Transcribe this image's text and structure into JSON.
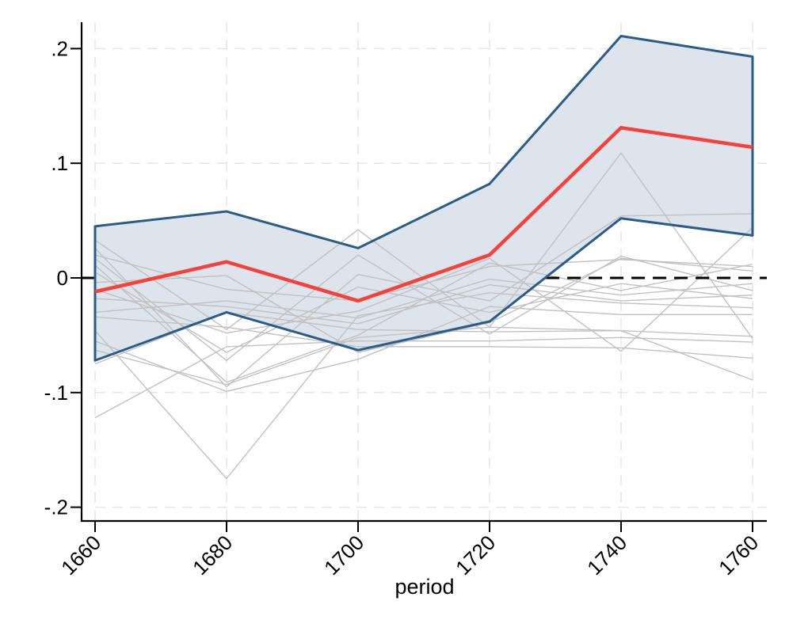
{
  "figure": {
    "background": "#ffffff",
    "x_axis_title": "period"
  },
  "chart_data": {
    "type": "line",
    "title": "",
    "xlabel": "period",
    "ylabel": "",
    "x": [
      1660,
      1680,
      1700,
      1720,
      1740,
      1760
    ],
    "x_tick_labels": [
      "1660",
      "1680",
      "1700",
      "1720",
      "1740",
      "1760"
    ],
    "x_tick_angle_deg": -45,
    "y_ticks": [
      {
        "value": 0.2,
        "label": ".2"
      },
      {
        "value": 0.1,
        "label": ".1"
      },
      {
        "value": 0,
        "label": "0"
      },
      {
        "value": -0.1,
        "label": "-.1"
      },
      {
        "value": -0.2,
        "label": "-.2"
      }
    ],
    "ylim": [
      -0.212,
      0.223
    ],
    "grid": "dashed-both-axes",
    "legend": "none",
    "series": [
      {
        "name": "point estimate",
        "role": "estimate",
        "color": "#f5403c",
        "width": 4.5,
        "values": [
          -0.012,
          0.014,
          -0.02,
          0.02,
          0.131,
          0.114
        ]
      },
      {
        "name": "confidence band upper",
        "role": "band-upper",
        "color": "#2b5c88",
        "width": 3,
        "values": [
          0.045,
          0.058,
          0.026,
          0.082,
          0.211,
          0.193
        ]
      },
      {
        "name": "confidence band lower",
        "role": "band-lower",
        "color": "#2b5c88",
        "width": 3,
        "values": [
          -0.072,
          -0.03,
          -0.063,
          -0.038,
          0.052,
          0.037
        ]
      }
    ],
    "band": {
      "fill": "#dde4ec",
      "edge": "#2b5c88"
    },
    "placebo_series": {
      "name": "placebo permutation lines",
      "color": "#c1c1c1",
      "width": 1.4,
      "lines": [
        [
          0.033,
          -0.045,
          0.042,
          -0.043,
          0.109,
          -0.053
        ],
        [
          0.026,
          -0.095,
          0.003,
          -0.02,
          0.054,
          0.056
        ],
        [
          0.017,
          -0.072,
          0.02,
          -0.049,
          0.019,
          -0.011
        ],
        [
          0.011,
          -0.091,
          -0.05,
          0.013,
          -0.011,
          0.012
        ],
        [
          -0.004,
          0.002,
          -0.065,
          -0.039,
          0.017,
          0.006
        ],
        [
          -0.01,
          -0.048,
          -0.029,
          0.017,
          -0.064,
          0.044
        ],
        [
          -0.03,
          -0.02,
          -0.035,
          -0.001,
          -0.015,
          -0.005
        ],
        [
          -0.034,
          -0.043,
          -0.06,
          -0.06,
          -0.061,
          -0.07
        ],
        [
          -0.046,
          -0.175,
          -0.033,
          -0.013,
          -0.022,
          -0.026
        ],
        [
          -0.055,
          -0.099,
          -0.071,
          -0.025,
          -0.032,
          -0.032
        ],
        [
          -0.075,
          -0.03,
          -0.045,
          -0.047,
          -0.046,
          -0.051
        ],
        [
          -0.122,
          -0.06,
          -0.055,
          -0.055,
          -0.052,
          -0.056
        ],
        [
          0.02,
          -0.01,
          -0.02,
          0.01,
          0.016,
          0.01
        ],
        [
          -0.063,
          -0.093,
          -0.052,
          -0.043,
          -0.046,
          -0.089
        ],
        [
          -0.018,
          -0.025,
          -0.04,
          -0.006,
          -0.02,
          -0.015
        ],
        [
          0.005,
          -0.065,
          -0.008,
          -0.03,
          -0.005,
          -0.018
        ]
      ]
    },
    "reference_line": {
      "y": 0,
      "style": "dashed",
      "color": "#000000",
      "width": 3
    },
    "colors": {
      "estimate": "#f5403c",
      "band_fill": "#dde4ec",
      "band_edge": "#2b5c88",
      "placebo": "#c1c1c1",
      "gridline": "#e6e6e6",
      "axis": "#000000"
    }
  }
}
